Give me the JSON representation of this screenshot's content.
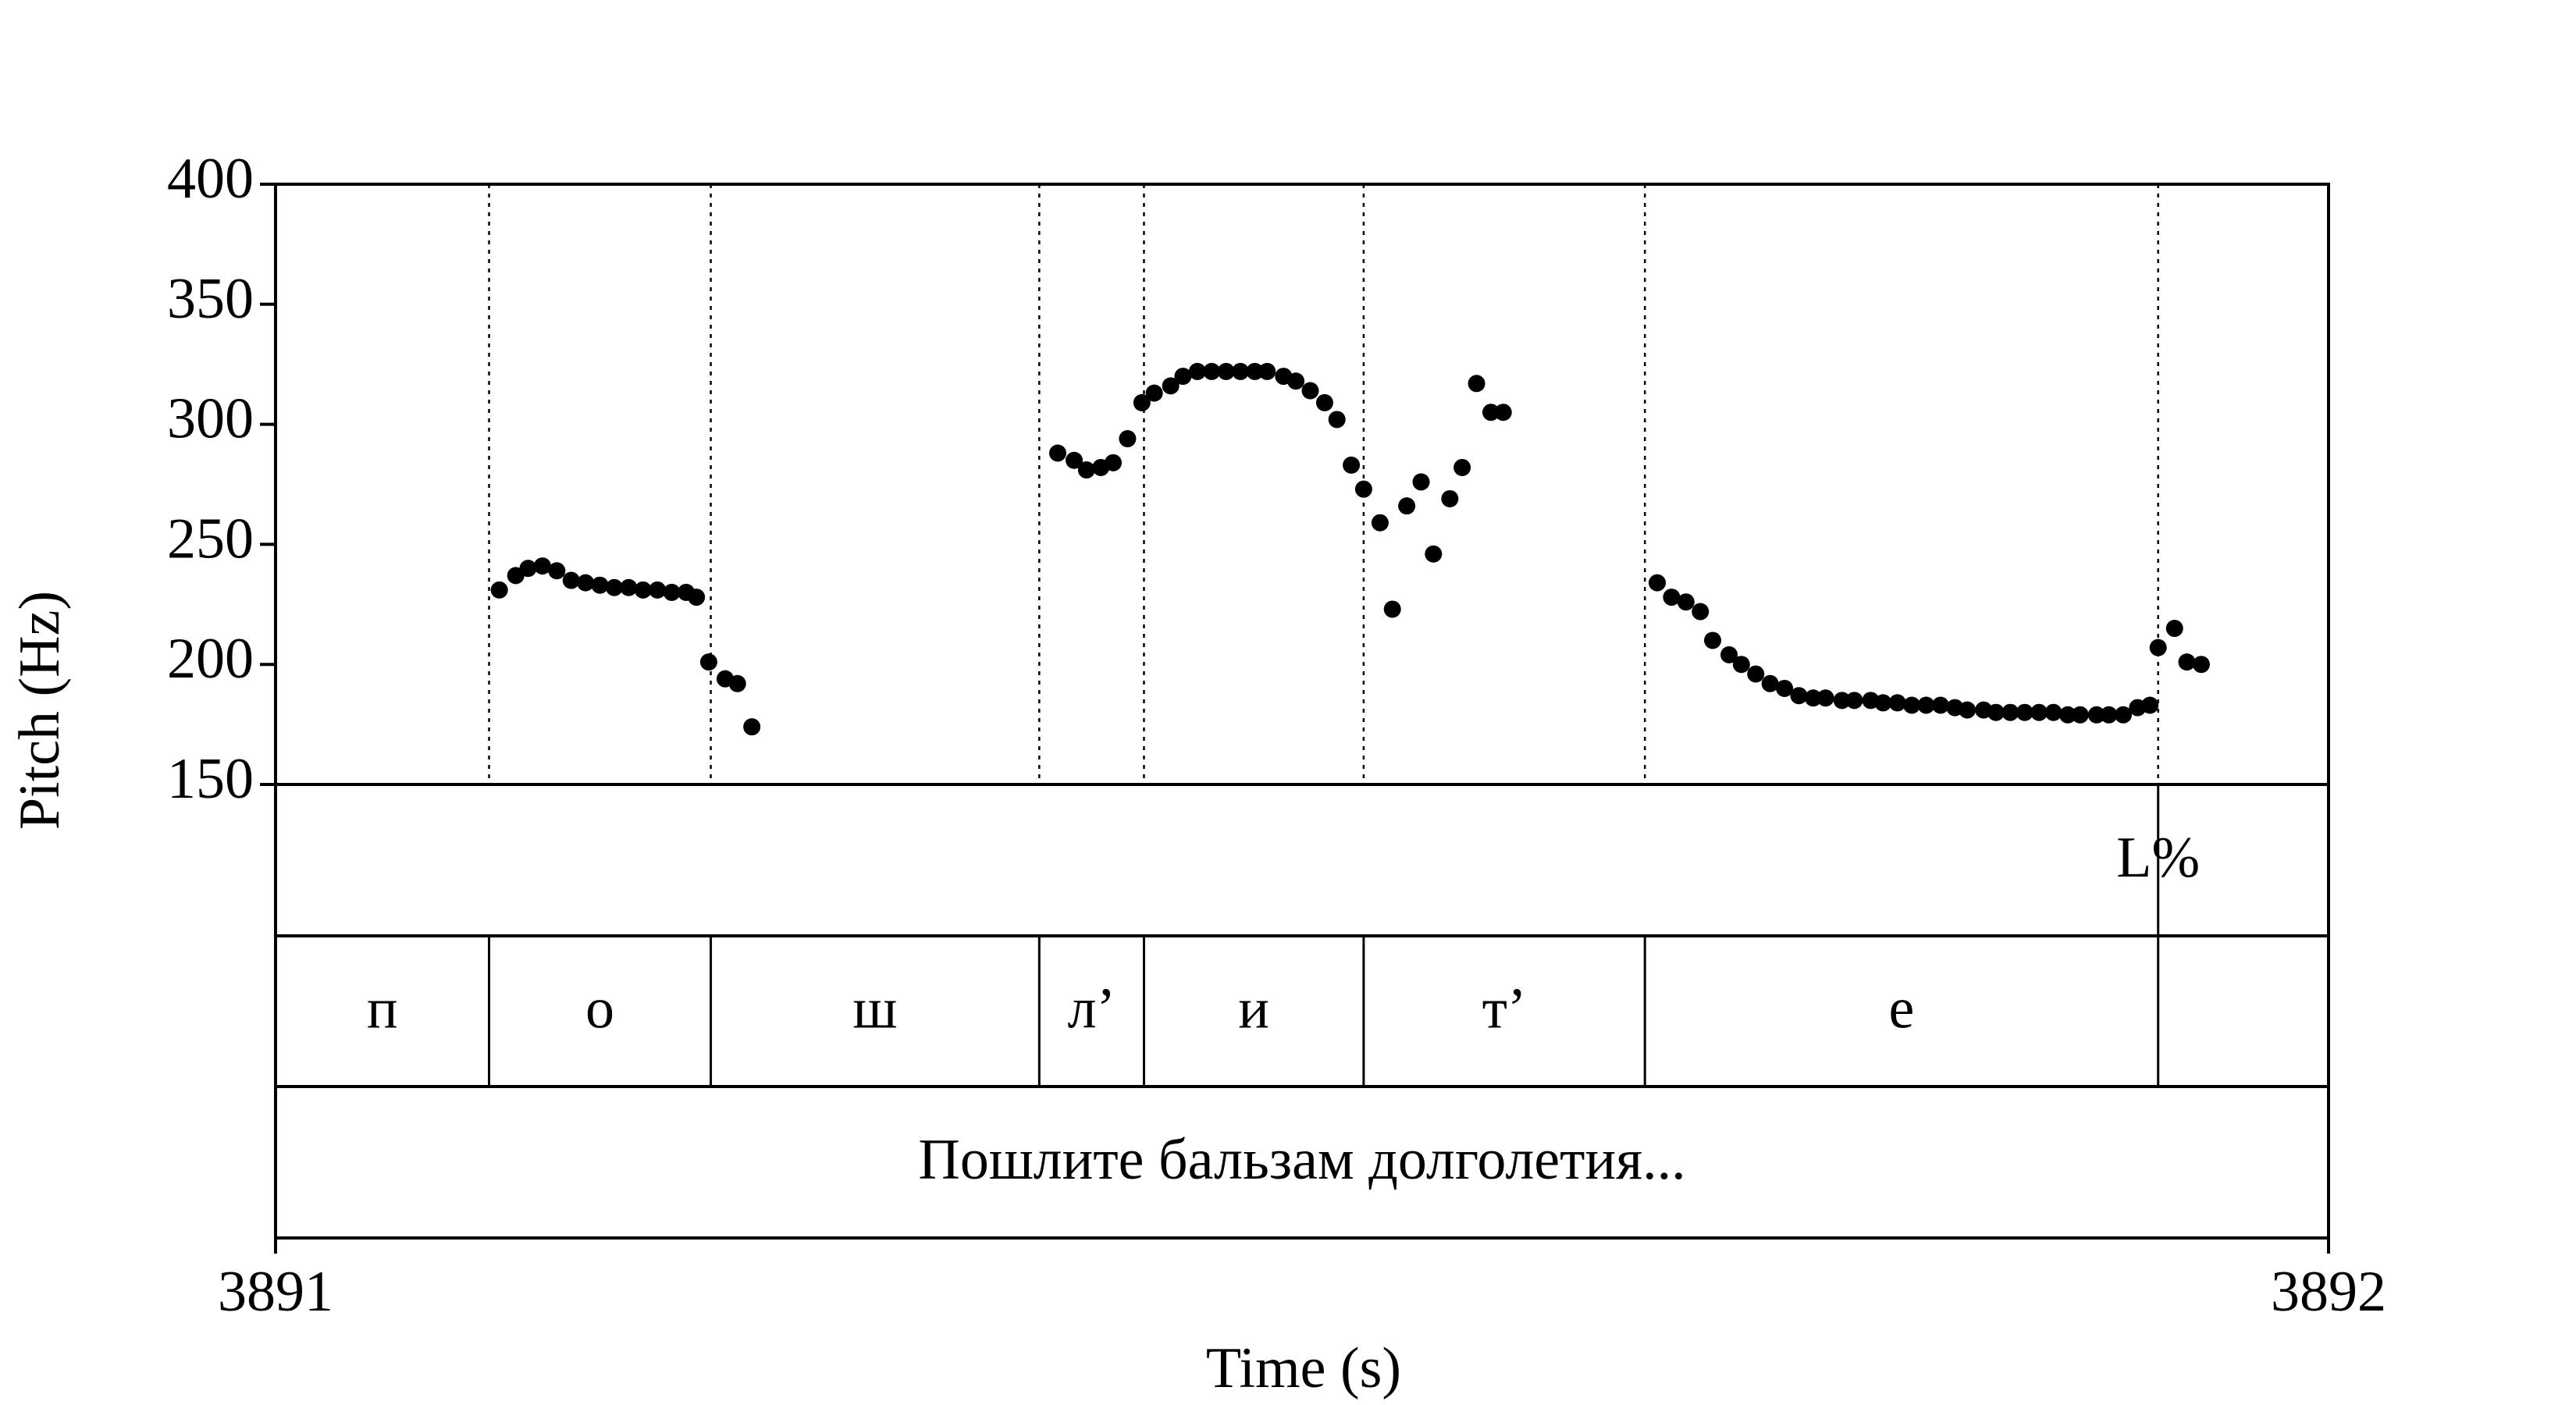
{
  "chart_data": {
    "type": "scatter",
    "x_label": "Time (s)",
    "y_label": "Pitch (Hz)",
    "color": "#000000",
    "xlim": [
      3891,
      3892
    ],
    "xticks": [
      3891,
      3892
    ],
    "ylim": [
      150,
      400
    ],
    "yticks": [
      150,
      200,
      250,
      300,
      350,
      400
    ],
    "x": [
      3891.109,
      3891.117,
      3891.123,
      3891.13,
      3891.137,
      3891.144,
      3891.151,
      3891.158,
      3891.165,
      3891.172,
      3891.179,
      3891.186,
      3891.193,
      3891.2,
      3891.205,
      3891.211,
      3891.219,
      3891.225,
      3891.232,
      3891.381,
      3891.389,
      3891.395,
      3891.402,
      3891.408,
      3891.415,
      3891.422,
      3891.428,
      3891.436,
      3891.442,
      3891.449,
      3891.456,
      3891.463,
      3891.47,
      3891.477,
      3891.483,
      3891.491,
      3891.497,
      3891.504,
      3891.511,
      3891.517,
      3891.524,
      3891.53,
      3891.538,
      3891.544,
      3891.551,
      3891.558,
      3891.564,
      3891.572,
      3891.578,
      3891.585,
      3891.592,
      3891.598,
      3891.673,
      3891.68,
      3891.687,
      3891.694,
      3891.7,
      3891.708,
      3891.714,
      3891.721,
      3891.728,
      3891.735,
      3891.742,
      3891.749,
      3891.755,
      3891.763,
      3891.769,
      3891.777,
      3891.783,
      3891.79,
      3891.797,
      3891.804,
      3891.811,
      3891.818,
      3891.824,
      3891.832,
      3891.838,
      3891.845,
      3891.852,
      3891.859,
      3891.866,
      3891.873,
      3891.879,
      3891.887,
      3891.893,
      3891.9,
      3891.907,
      3891.913,
      3891.917,
      3891.925,
      3891.931,
      3891.938
    ],
    "values": [
      231,
      237,
      240,
      241,
      239,
      235,
      234,
      233,
      232,
      232,
      231,
      231,
      230,
      230,
      228,
      201,
      194,
      192,
      174,
      288,
      285,
      281,
      282,
      284,
      294,
      309,
      313,
      316,
      320,
      322,
      322,
      322,
      322,
      322,
      322,
      320,
      318,
      314,
      309,
      302,
      283,
      273,
      259,
      223,
      266,
      276,
      246,
      269,
      282,
      317,
      305,
      305,
      234,
      228,
      226,
      222,
      210,
      204,
      200,
      196,
      192,
      190,
      187,
      186,
      186,
      185,
      185,
      185,
      184,
      184,
      183,
      183,
      183,
      182,
      181,
      181,
      180,
      180,
      180,
      180,
      180,
      179,
      179,
      179,
      179,
      179,
      182,
      183,
      207,
      215,
      201,
      200
    ],
    "tiers": [
      {
        "points": [
          3891.917
        ],
        "labels": [
          "L%"
        ]
      },
      {
        "boundaries": [
          3891.104,
          3891.212,
          3891.372,
          3891.423,
          3891.53,
          3891.667,
          3891.917
        ],
        "labels": [
          "п",
          "о",
          "ш",
          "л’",
          "и",
          "т’",
          "е",
          null
        ]
      },
      {
        "labels": [
          "Пошлите бальзам долголетия..."
        ]
      }
    ]
  }
}
